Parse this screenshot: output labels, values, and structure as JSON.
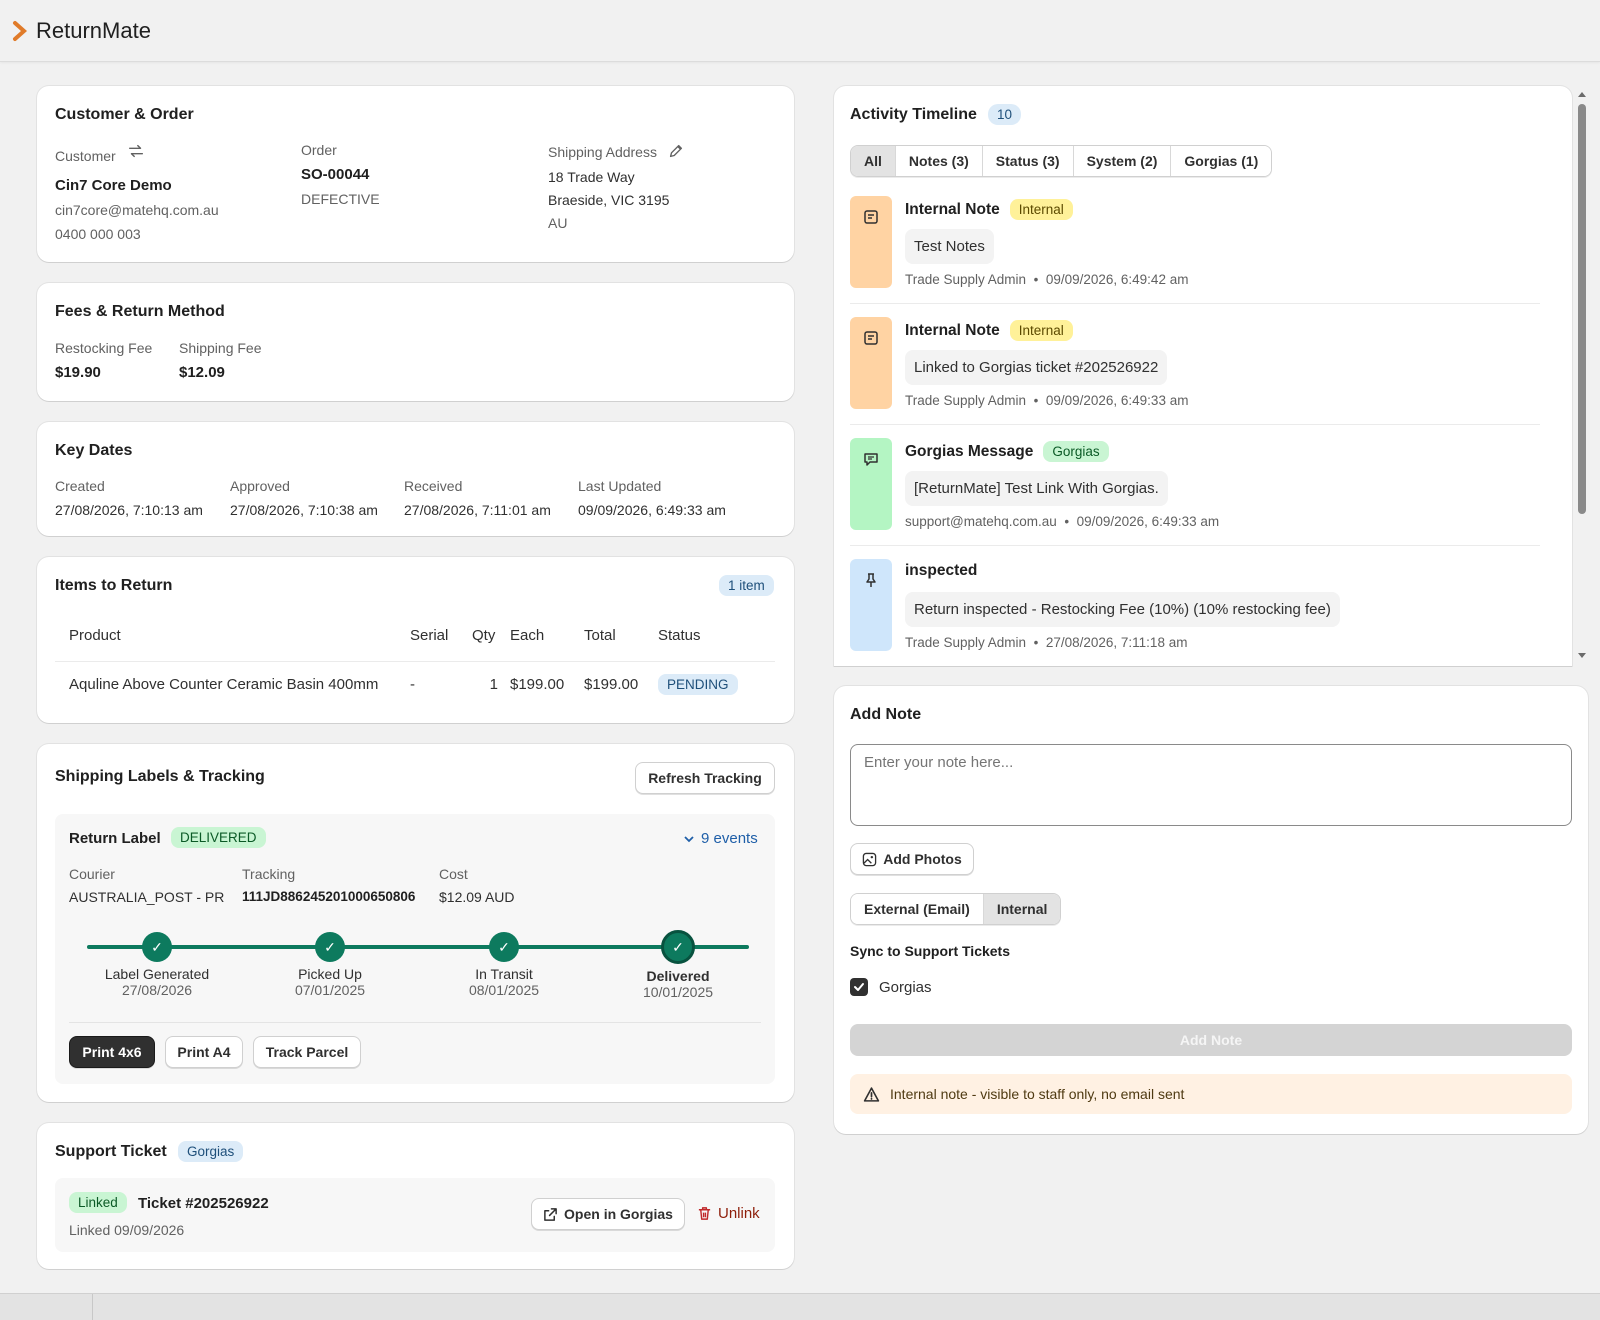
{
  "app": {
    "title": "ReturnMate"
  },
  "customer_order": {
    "title": "Customer & Order",
    "customer_label": "Customer",
    "customer_name": "Cin7 Core Demo",
    "email": "cin7core@matehq.com.au",
    "phone": "0400 000 003",
    "order_label": "Order",
    "order_number": "SO-00044",
    "order_reason": "DEFECTIVE",
    "shipping_label": "Shipping Address",
    "address_line1": "18 Trade Way",
    "address_line2": "Braeside, VIC 3195",
    "address_country": "AU"
  },
  "fees": {
    "title": "Fees & Return Method",
    "restocking_label": "Restocking Fee",
    "restocking_value": "$19.90",
    "shipping_label": "Shipping Fee",
    "shipping_value": "$12.09"
  },
  "key_dates": {
    "title": "Key Dates",
    "items": [
      {
        "label": "Created",
        "value": "27/08/2026, 7:10:13 am"
      },
      {
        "label": "Approved",
        "value": "27/08/2026, 7:10:38 am"
      },
      {
        "label": "Received",
        "value": "27/08/2026, 7:11:01 am"
      },
      {
        "label": "Last Updated",
        "value": "09/09/2026, 6:49:33 am"
      }
    ]
  },
  "items_to_return": {
    "title": "Items to Return",
    "count_badge": "1 item",
    "columns": [
      "Product",
      "Serial",
      "Qty",
      "Each",
      "Total",
      "Status"
    ],
    "rows": [
      {
        "product": "Aquline Above Counter Ceramic Basin 400mm",
        "serial": "-",
        "qty": "1",
        "each": "$199.00",
        "total": "$199.00",
        "status": "PENDING"
      }
    ]
  },
  "shipping": {
    "title": "Shipping Labels & Tracking",
    "refresh_label": "Refresh Tracking",
    "label_title": "Return Label",
    "label_status": "DELIVERED",
    "events_link": "9 events",
    "courier_label": "Courier",
    "courier_value": "AUSTRALIA_POST - PR",
    "tracking_label": "Tracking",
    "tracking_value": "111JD886245201000650806",
    "cost_label": "Cost",
    "cost_value": "$12.09 AUD",
    "steps": [
      {
        "name": "Label Generated",
        "date": "27/08/2026"
      },
      {
        "name": "Picked Up",
        "date": "07/01/2025"
      },
      {
        "name": "In Transit",
        "date": "08/01/2025"
      },
      {
        "name": "Delivered",
        "date": "10/01/2025"
      }
    ],
    "check": "✓",
    "print_4x6": "Print 4x6",
    "print_a4": "Print A4",
    "track_parcel": "Track Parcel"
  },
  "support_ticket": {
    "title": "Support Ticket",
    "provider_badge": "Gorgias",
    "linked_badge": "Linked",
    "ticket": "Ticket #202526922",
    "linked_date": "Linked 09/09/2026",
    "open_label": "Open in Gorgias",
    "unlink_label": "Unlink"
  },
  "timeline": {
    "title": "Activity Timeline",
    "count": "10",
    "filters": [
      "All",
      "Notes (3)",
      "Status (3)",
      "System (2)",
      "Gorgias (1)"
    ],
    "entries": [
      {
        "title": "Internal Note",
        "badge": "Internal",
        "body": "Test Notes",
        "author": "Trade Supply Admin",
        "time": "09/09/2026, 6:49:42 am",
        "icon": "note-icon",
        "color": "#ffd3a3"
      },
      {
        "title": "Internal Note",
        "badge": "Internal",
        "body": "Linked to Gorgias ticket #202526922",
        "author": "Trade Supply Admin",
        "time": "09/09/2026, 6:49:33 am",
        "icon": "note-icon",
        "color": "#ffd3a3"
      },
      {
        "title": "Gorgias Message",
        "badge": "Gorgias",
        "body": "[ReturnMate] Test Link With Gorgias.",
        "author": "support@matehq.com.au",
        "time": "09/09/2026, 6:49:33 am",
        "icon": "chat-icon",
        "color": "#b4f5c3"
      },
      {
        "title": "inspected",
        "badge": "",
        "body": "Return inspected - Restocking Fee (10%) (10% restocking fee)",
        "author": "Trade Supply Admin",
        "time": "27/08/2026, 7:11:18 am",
        "icon": "pin-icon",
        "color": "#cfe6fb"
      }
    ],
    "separator": "•"
  },
  "add_note": {
    "title": "Add Note",
    "placeholder": "Enter your note here...",
    "add_photos": "Add Photos",
    "visibility_options": [
      "External (Email)",
      "Internal"
    ],
    "selected_visibility": "Internal",
    "sync_label": "Sync to Support Tickets",
    "sync_option": "Gorgias",
    "sync_checked": true,
    "submit_label": "Add Note",
    "warning": "Internal note - visible to staff only, no email sent"
  },
  "colors": {
    "accent_green": "#0d7a5e",
    "warning_bg": "#fff1e3",
    "danger": "#8e1f0b"
  }
}
